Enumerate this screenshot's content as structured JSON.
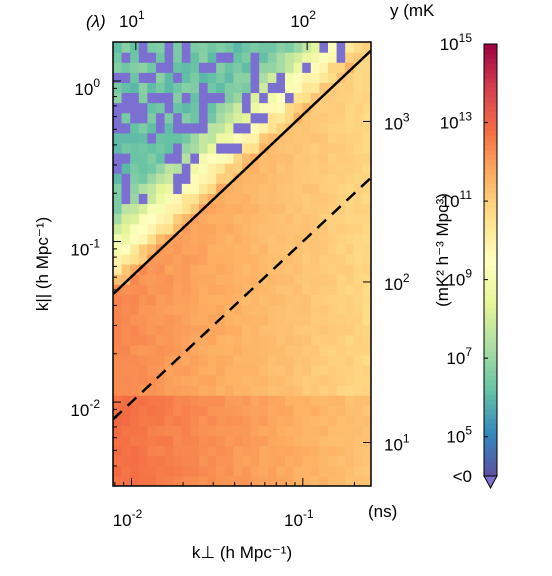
{
  "figure": {
    "title_fragment": "y (mK",
    "top_axis_prefix": "(λ)",
    "right_axis_unit": "(ns)"
  },
  "colorbar": {
    "label": "(mK² h⁻³ Mpc³)",
    "tick_exponents": [
      5,
      7,
      9,
      11,
      13,
      15
    ],
    "under_label": "<0",
    "colors": [
      "#5e4fa2",
      "#3288bd",
      "#66c2a5",
      "#abdda4",
      "#e6f598",
      "#ffffbf",
      "#fee08b",
      "#fdae61",
      "#f46d43",
      "#d53e4f",
      "#9e0142"
    ],
    "under_color": "#7b6fd1",
    "range_log10": [
      4,
      15
    ]
  },
  "chart_data": {
    "type": "heatmap",
    "title": "",
    "xlabel": "k⊥ (h Mpc⁻¹)",
    "ylabel": "k|| (h Mpc⁻¹)",
    "x_scale": "log",
    "y_scale": "log",
    "xlim": [
      0.0078,
      0.25
    ],
    "ylim": [
      0.003,
      1.75
    ],
    "x_ticks": [
      {
        "base": "10",
        "exp": "-2",
        "value": 0.01
      },
      {
        "base": "10",
        "exp": "-1",
        "value": 0.1
      }
    ],
    "y_ticks": [
      {
        "base": "10",
        "exp": "-2",
        "value": 0.01
      },
      {
        "base": "10",
        "exp": "-1",
        "value": 0.1
      },
      {
        "base": "10",
        "exp": "0",
        "value": 1
      }
    ],
    "top_axis": {
      "label": "(λ)",
      "scale": "log",
      "ticks": [
        {
          "base": "10",
          "exp": "1",
          "value": 0.0106
        },
        {
          "base": "10",
          "exp": "2",
          "value": 0.106
        }
      ]
    },
    "right_axis": {
      "label": "(ns)",
      "scale": "log",
      "ticks": [
        {
          "base": "10",
          "exp": "1",
          "value": 0.0056
        },
        {
          "base": "10",
          "exp": "2",
          "value": 0.056
        },
        {
          "base": "10",
          "exp": "3",
          "value": 0.56
        }
      ]
    },
    "colorbar_range_log10": [
      4,
      15
    ],
    "negative_color": "#7b6fd1",
    "lines": [
      {
        "style": "solid",
        "x": [
          0.0078,
          0.25
        ],
        "y": [
          0.047,
          1.55
        ]
      },
      {
        "style": "dashed",
        "x": [
          0.0078,
          0.25
        ],
        "y": [
          0.0078,
          0.25
        ]
      }
    ],
    "grid": false,
    "legend": "none"
  }
}
